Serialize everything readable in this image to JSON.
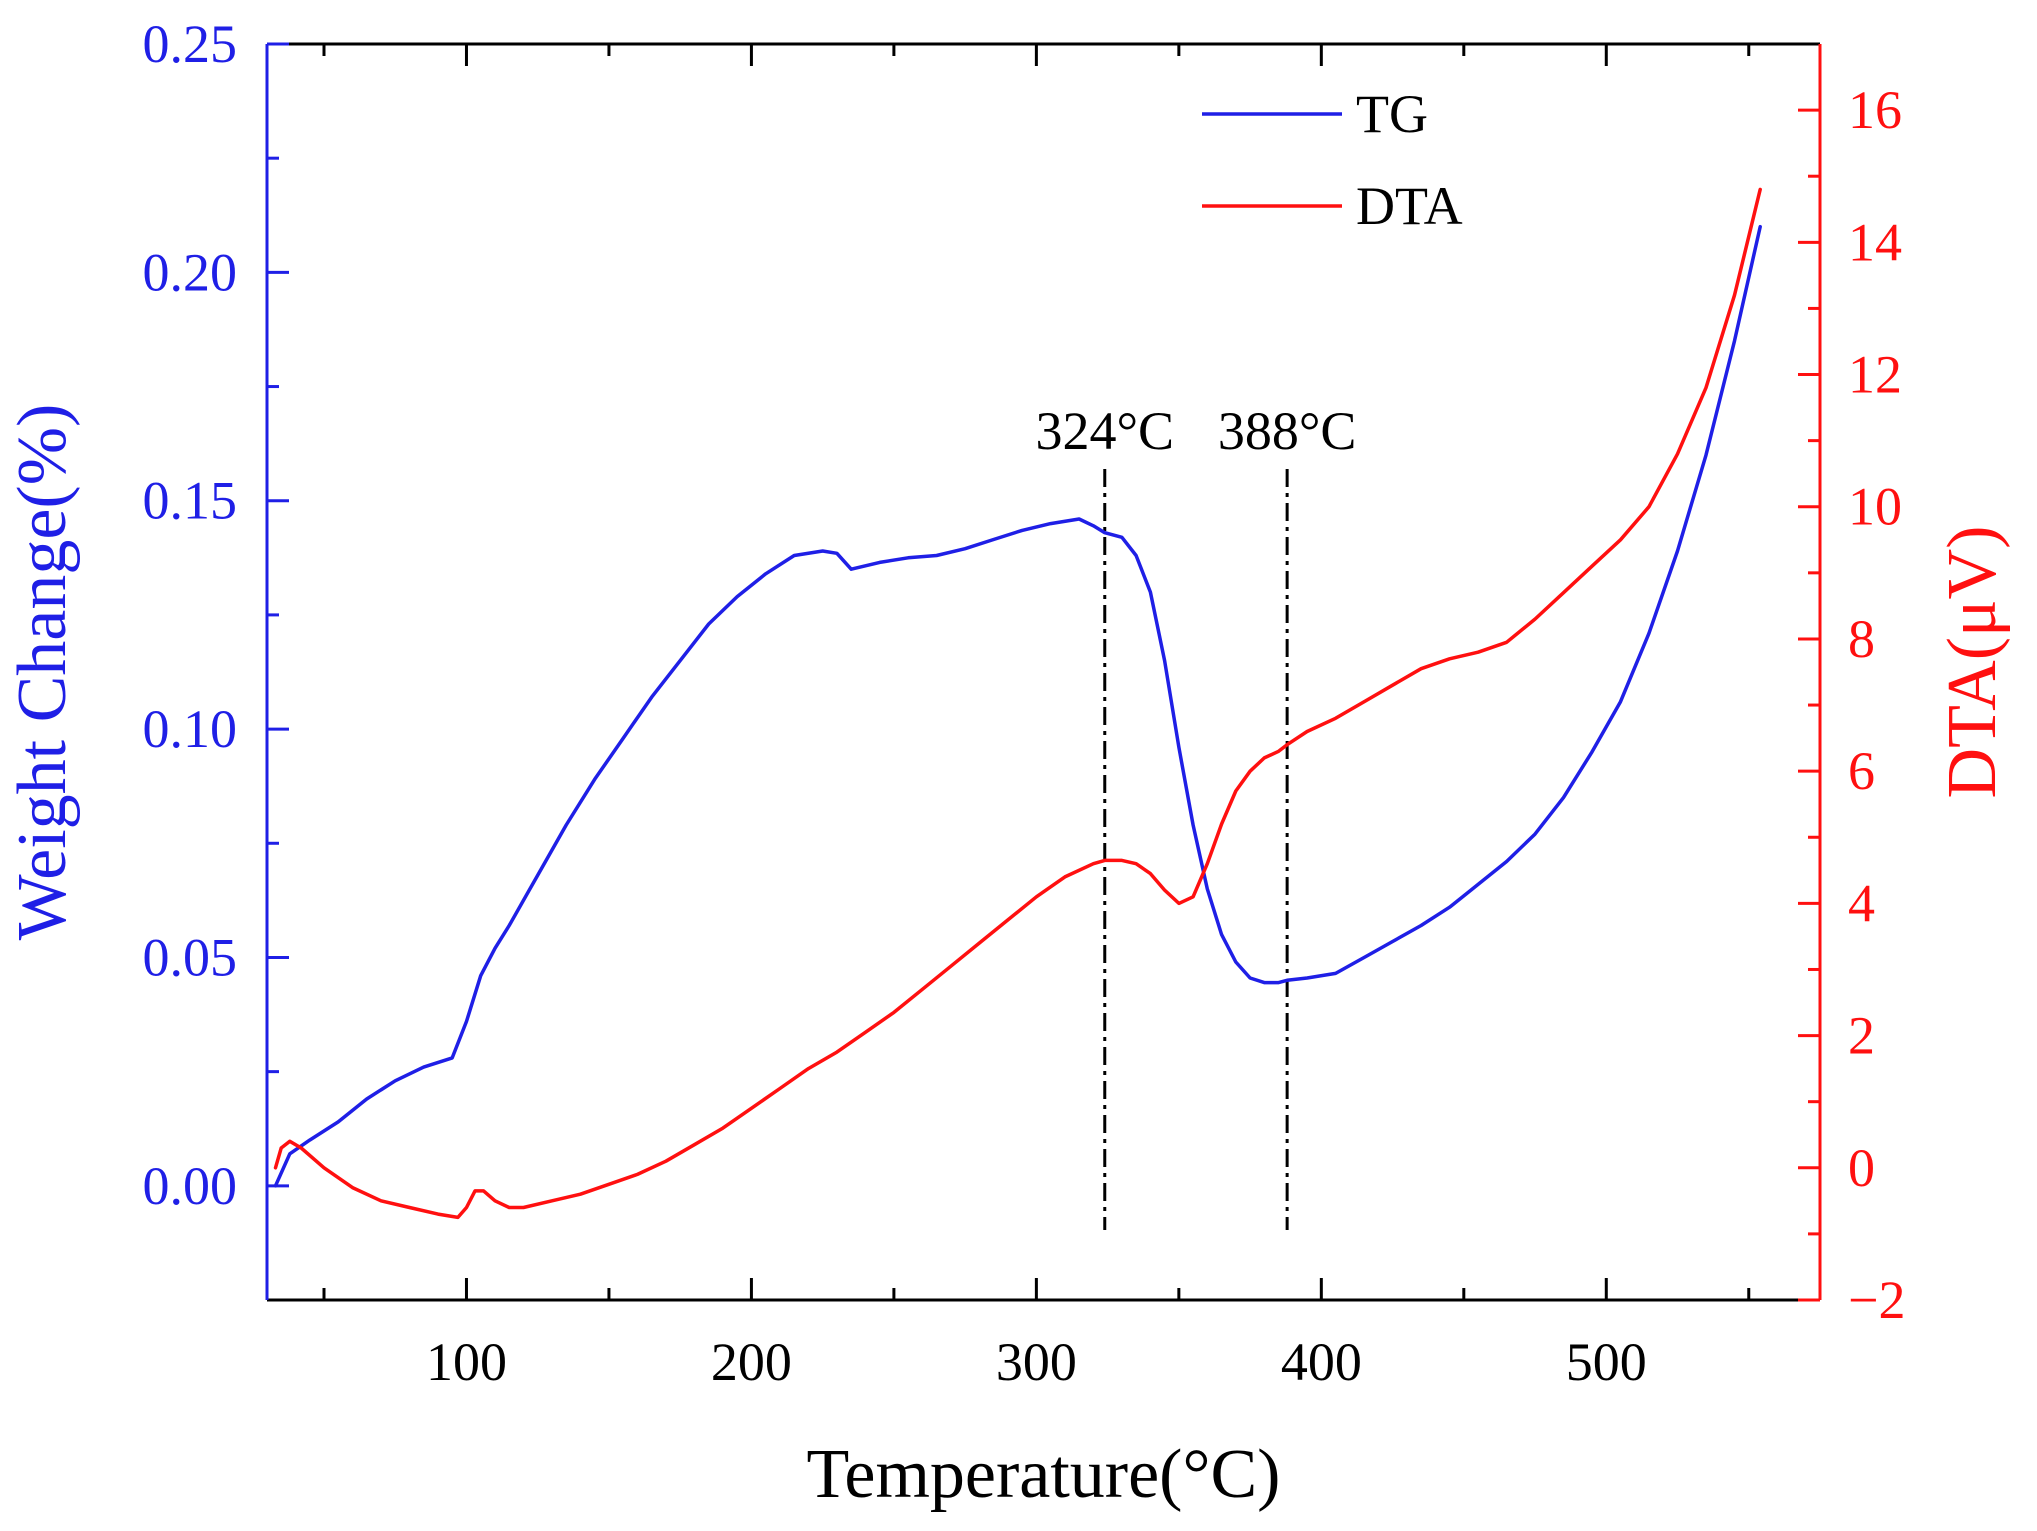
{
  "chart_data": {
    "type": "line",
    "title": "",
    "xlabel": "Temperature(°C)",
    "ylabel_left": "Weight Change(%)",
    "ylabel_right": "DTA(μV)",
    "xlim": [
      30,
      575
    ],
    "ylim_left": [
      -0.025,
      0.25
    ],
    "ylim_right": [
      -2,
      17
    ],
    "x_ticks": [
      "100",
      "200",
      "300",
      "400",
      "500"
    ],
    "x_tick_values": [
      100,
      200,
      300,
      400,
      500
    ],
    "y_left_ticks": [
      "0.00",
      "0.05",
      "0.10",
      "0.15",
      "0.20",
      "0.25"
    ],
    "y_left_tick_values": [
      0,
      0.05,
      0.1,
      0.15,
      0.2,
      0.25
    ],
    "y_right_ticks": [
      "−2",
      "0",
      "2",
      "4",
      "6",
      "8",
      "10",
      "12",
      "14",
      "16"
    ],
    "y_right_tick_values": [
      -2,
      0,
      2,
      4,
      6,
      8,
      10,
      12,
      14,
      16
    ],
    "legend_position": "top-right",
    "colors": {
      "tg": "#1f1fe6",
      "dta": "#ff1010",
      "left_axis": "#1f1fe6",
      "right_axis": "#ff1010",
      "annotation": "#000000"
    },
    "series": [
      {
        "name": "TG",
        "axis": "left",
        "x": [
          33,
          38,
          45,
          55,
          65,
          75,
          85,
          95,
          100,
          105,
          110,
          115,
          125,
          135,
          145,
          155,
          165,
          175,
          185,
          195,
          205,
          215,
          225,
          230,
          235,
          245,
          255,
          265,
          275,
          285,
          295,
          305,
          315,
          320,
          324,
          330,
          335,
          340,
          345,
          350,
          355,
          360,
          365,
          370,
          375,
          380,
          385,
          388,
          395,
          405,
          415,
          425,
          435,
          445,
          455,
          465,
          475,
          485,
          495,
          505,
          515,
          525,
          535,
          545,
          554
        ],
        "values": [
          0.0,
          0.007,
          0.01,
          0.014,
          0.019,
          0.023,
          0.026,
          0.028,
          0.036,
          0.046,
          0.052,
          0.057,
          0.068,
          0.079,
          0.089,
          0.098,
          0.107,
          0.115,
          0.123,
          0.129,
          0.134,
          0.138,
          0.139,
          0.1385,
          0.135,
          0.1365,
          0.1375,
          0.138,
          0.1395,
          0.1415,
          0.1435,
          0.145,
          0.146,
          0.1445,
          0.143,
          0.142,
          0.138,
          0.13,
          0.115,
          0.096,
          0.079,
          0.065,
          0.055,
          0.049,
          0.0455,
          0.0445,
          0.0445,
          0.045,
          0.0455,
          0.0465,
          0.05,
          0.0535,
          0.057,
          0.061,
          0.066,
          0.071,
          0.077,
          0.085,
          0.095,
          0.106,
          0.121,
          0.139,
          0.16,
          0.185,
          0.21
        ]
      },
      {
        "name": "DTA",
        "axis": "right",
        "x": [
          33,
          35,
          38,
          42,
          50,
          60,
          70,
          80,
          90,
          97,
          100,
          103,
          106,
          110,
          115,
          120,
          130,
          140,
          150,
          160,
          170,
          180,
          190,
          200,
          210,
          220,
          230,
          240,
          250,
          260,
          270,
          280,
          290,
          300,
          310,
          320,
          324,
          330,
          335,
          340,
          345,
          350,
          355,
          360,
          365,
          370,
          375,
          380,
          385,
          388,
          395,
          405,
          415,
          425,
          435,
          445,
          455,
          465,
          475,
          485,
          495,
          505,
          515,
          525,
          535,
          545,
          554
        ],
        "values": [
          0.0,
          0.3,
          0.4,
          0.3,
          0.0,
          -0.3,
          -0.5,
          -0.6,
          -0.7,
          -0.75,
          -0.6,
          -0.35,
          -0.35,
          -0.5,
          -0.6,
          -0.6,
          -0.5,
          -0.4,
          -0.25,
          -0.1,
          0.1,
          0.35,
          0.6,
          0.9,
          1.2,
          1.5,
          1.75,
          2.05,
          2.35,
          2.7,
          3.05,
          3.4,
          3.75,
          4.1,
          4.4,
          4.6,
          4.65,
          4.65,
          4.6,
          4.45,
          4.2,
          4.0,
          4.1,
          4.6,
          5.2,
          5.7,
          6.0,
          6.2,
          6.3,
          6.4,
          6.6,
          6.8,
          7.05,
          7.3,
          7.55,
          7.7,
          7.8,
          7.95,
          8.3,
          8.7,
          9.1,
          9.5,
          10.0,
          10.8,
          11.8,
          13.2,
          14.8
        ]
      }
    ],
    "annotations": [
      {
        "label": "324°C",
        "x": 324
      },
      {
        "label": "388°C",
        "x": 388
      }
    ]
  }
}
